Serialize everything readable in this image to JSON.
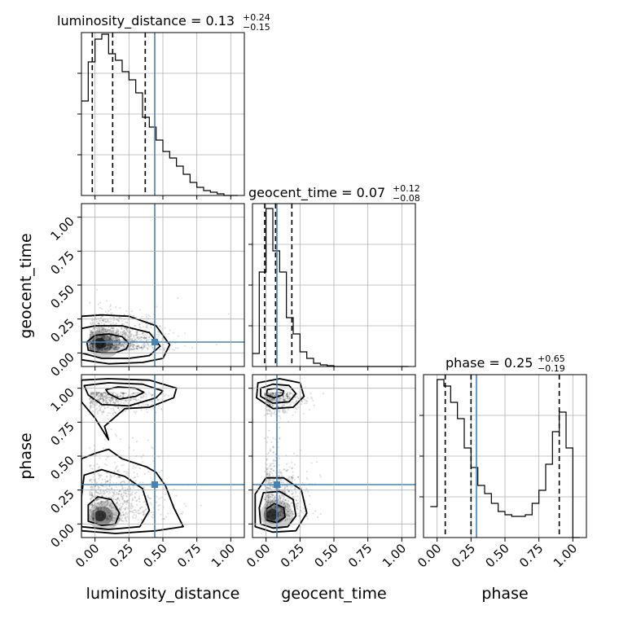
{
  "chart_data": {
    "type": "corner",
    "parameters": [
      "luminosity_distance",
      "geocent_time",
      "phase"
    ],
    "truths": [
      0.44,
      0.08,
      0.29
    ],
    "axis_range": [
      -0.1,
      1.1
    ],
    "tick_values": [
      0.0,
      0.25,
      0.5,
      0.75,
      1.0
    ],
    "tick_labels": [
      "0.00",
      "0.25",
      "0.50",
      "0.75",
      "1.00"
    ],
    "grid": true,
    "titles": [
      {
        "param": "luminosity_distance",
        "median": "0.13",
        "plus": "+0.24",
        "minus": "−0.15"
      },
      {
        "param": "geocent_time",
        "median": "0.07",
        "plus": "+0.12",
        "minus": "−0.08"
      },
      {
        "param": "phase",
        "median": "0.25",
        "plus": "+0.65",
        "minus": "−0.19"
      }
    ],
    "histograms": [
      {
        "param": "luminosity_distance",
        "bin_edges": [
          -0.1,
          -0.05,
          0.0,
          0.05,
          0.1,
          0.15,
          0.2,
          0.25,
          0.3,
          0.35,
          0.4,
          0.45,
          0.5,
          0.55,
          0.6,
          0.65,
          0.7,
          0.75,
          0.8,
          0.85,
          0.9,
          0.95,
          1.0,
          1.05
        ],
        "counts": [
          0.58,
          0.82,
          0.96,
          0.99,
          0.87,
          0.83,
          0.76,
          0.71,
          0.63,
          0.48,
          0.42,
          0.34,
          0.27,
          0.23,
          0.18,
          0.13,
          0.08,
          0.05,
          0.03,
          0.02,
          0.01,
          0.0,
          0.0
        ],
        "quantiles": [
          -0.02,
          0.13,
          0.37
        ]
      },
      {
        "param": "geocent_time",
        "bin_edges": [
          -0.1,
          -0.05,
          0.0,
          0.05,
          0.1,
          0.15,
          0.2,
          0.25,
          0.3,
          0.35,
          0.4,
          0.45,
          0.5,
          0.55,
          0.6,
          0.65,
          0.7,
          0.75,
          0.8,
          0.85,
          0.9,
          0.95,
          1.0,
          1.05
        ],
        "counts": [
          0.08,
          0.58,
          0.97,
          0.71,
          0.58,
          0.3,
          0.2,
          0.09,
          0.05,
          0.02,
          0.01,
          0.005,
          0.0,
          0.0,
          0.0,
          0.0,
          0.0,
          0.0,
          0.0,
          0.0,
          0.0,
          0.0,
          0.0
        ],
        "quantiles": [
          -0.01,
          0.07,
          0.19
        ]
      },
      {
        "param": "phase",
        "bin_edges": [
          -0.05,
          0.0,
          0.05,
          0.1,
          0.15,
          0.2,
          0.25,
          0.3,
          0.35,
          0.4,
          0.45,
          0.5,
          0.55,
          0.6,
          0.65,
          0.7,
          0.75,
          0.8,
          0.85,
          0.9,
          0.95,
          1.0,
          1.05
        ],
        "counts": [
          0.19,
          0.97,
          0.93,
          0.83,
          0.73,
          0.55,
          0.43,
          0.32,
          0.27,
          0.21,
          0.16,
          0.14,
          0.13,
          0.13,
          0.14,
          0.21,
          0.29,
          0.45,
          0.65,
          0.77,
          0.55,
          0.0
        ],
        "quantiles": [
          0.06,
          0.25,
          0.9
        ]
      }
    ],
    "panels_2d": [
      {
        "x": "luminosity_distance",
        "y": "geocent_time",
        "density_peak": [
          0.02,
          0.07
        ],
        "contour_levels": [
          [
            [
              -0.05,
              0.02
            ],
            [
              0.05,
              -0.0
            ],
            [
              0.15,
              0.0
            ],
            [
              0.23,
              0.03
            ],
            [
              0.25,
              0.07
            ],
            [
              0.2,
              0.12
            ],
            [
              0.1,
              0.14
            ],
            [
              0.0,
              0.13
            ],
            [
              -0.06,
              0.08
            ]
          ],
          [
            [
              -0.1,
              0.0
            ],
            [
              0.05,
              -0.04
            ],
            [
              0.25,
              -0.04
            ],
            [
              0.4,
              -0.02
            ],
            [
              0.48,
              0.05
            ],
            [
              0.4,
              0.15
            ],
            [
              0.2,
              0.2
            ],
            [
              0.0,
              0.2
            ],
            [
              -0.1,
              0.18
            ]
          ],
          [
            [
              -0.1,
              -0.05
            ],
            [
              0.1,
              -0.08
            ],
            [
              0.35,
              -0.07
            ],
            [
              0.5,
              -0.04
            ],
            [
              0.55,
              0.06
            ],
            [
              0.45,
              0.2
            ],
            [
              0.25,
              0.27
            ],
            [
              0.05,
              0.28
            ],
            [
              -0.1,
              0.27
            ]
          ]
        ]
      },
      {
        "x": "luminosity_distance",
        "y": "phase",
        "density_peak": [
          0.02,
          0.06
        ],
        "contour_levels": [
          [
            [
              -0.05,
              0.02
            ],
            [
              0.05,
              -0.01
            ],
            [
              0.15,
              0.0
            ],
            [
              0.18,
              0.08
            ],
            [
              0.12,
              0.18
            ],
            [
              0.02,
              0.2
            ],
            [
              -0.05,
              0.14
            ]
          ],
          [
            [
              -0.1,
              -0.02
            ],
            [
              0.1,
              -0.04
            ],
            [
              0.33,
              -0.02
            ],
            [
              0.4,
              0.1
            ],
            [
              0.35,
              0.26
            ],
            [
              0.22,
              0.35
            ],
            [
              0.05,
              0.4
            ],
            [
              -0.08,
              0.36
            ],
            [
              -0.1,
              0.2
            ]
          ],
          [
            [
              -0.1,
              -0.05
            ],
            [
              0.15,
              -0.07
            ],
            [
              0.45,
              -0.05
            ],
            [
              0.65,
              -0.02
            ],
            [
              0.58,
              0.12
            ],
            [
              0.52,
              0.28
            ],
            [
              0.45,
              0.38
            ],
            [
              0.38,
              0.42
            ],
            [
              0.2,
              0.48
            ],
            [
              0.1,
              0.55
            ],
            [
              0.0,
              0.52
            ],
            [
              -0.1,
              0.48
            ]
          ],
          [
            [
              0.1,
              0.96
            ],
            [
              0.18,
              0.92
            ],
            [
              0.3,
              0.94
            ],
            [
              0.36,
              0.97
            ],
            [
              0.3,
              1.0
            ],
            [
              0.17,
              1.01
            ],
            [
              0.08,
              0.99
            ]
          ],
          [
            [
              -0.05,
              0.95
            ],
            [
              0.05,
              0.88
            ],
            [
              0.25,
              0.87
            ],
            [
              0.45,
              0.93
            ],
            [
              0.5,
              0.98
            ],
            [
              0.35,
              1.03
            ],
            [
              0.1,
              1.04
            ],
            [
              -0.08,
              1.02
            ]
          ],
          [
            [
              -0.1,
              0.9
            ],
            [
              0.0,
              0.78
            ],
            [
              0.1,
              0.62
            ],
            [
              0.07,
              0.72
            ],
            [
              0.22,
              0.85
            ],
            [
              0.4,
              0.86
            ],
            [
              0.58,
              0.93
            ],
            [
              0.6,
              1.0
            ],
            [
              0.4,
              1.06
            ],
            [
              0.1,
              1.07
            ],
            [
              -0.1,
              1.06
            ]
          ]
        ]
      },
      {
        "x": "geocent_time",
        "y": "phase",
        "density_peak": [
          0.03,
          0.07
        ],
        "contour_levels": [
          [
            [
              0.0,
              0.95
            ],
            [
              0.06,
              0.93
            ],
            [
              0.12,
              0.95
            ],
            [
              0.13,
              0.98
            ],
            [
              0.07,
              1.0
            ],
            [
              0.01,
              0.99
            ]
          ],
          [
            [
              -0.04,
              0.94
            ],
            [
              0.05,
              0.89
            ],
            [
              0.17,
              0.9
            ],
            [
              0.22,
              0.96
            ],
            [
              0.17,
              1.02
            ],
            [
              0.05,
              1.03
            ],
            [
              -0.04,
              1.0
            ]
          ],
          [
            [
              -0.07,
              0.93
            ],
            [
              0.05,
              0.85
            ],
            [
              0.2,
              0.86
            ],
            [
              0.28,
              0.94
            ],
            [
              0.25,
              1.04
            ],
            [
              0.1,
              1.07
            ],
            [
              -0.06,
              1.04
            ]
          ],
          [
            [
              0.0,
              0.03
            ],
            [
              0.08,
              0.01
            ],
            [
              0.14,
              0.05
            ],
            [
              0.13,
              0.12
            ],
            [
              0.06,
              0.15
            ],
            [
              0.0,
              0.11
            ]
          ],
          [
            [
              -0.04,
              0.0
            ],
            [
              0.05,
              -0.03
            ],
            [
              0.16,
              -0.02
            ],
            [
              0.22,
              0.06
            ],
            [
              0.2,
              0.18
            ],
            [
              0.1,
              0.24
            ],
            [
              -0.02,
              0.23
            ],
            [
              -0.05,
              0.12
            ]
          ],
          [
            [
              -0.08,
              -0.02
            ],
            [
              0.05,
              -0.06
            ],
            [
              0.22,
              -0.05
            ],
            [
              0.3,
              0.08
            ],
            [
              0.26,
              0.25
            ],
            [
              0.13,
              0.34
            ],
            [
              0.0,
              0.34
            ],
            [
              -0.08,
              0.22
            ]
          ]
        ]
      }
    ]
  }
}
